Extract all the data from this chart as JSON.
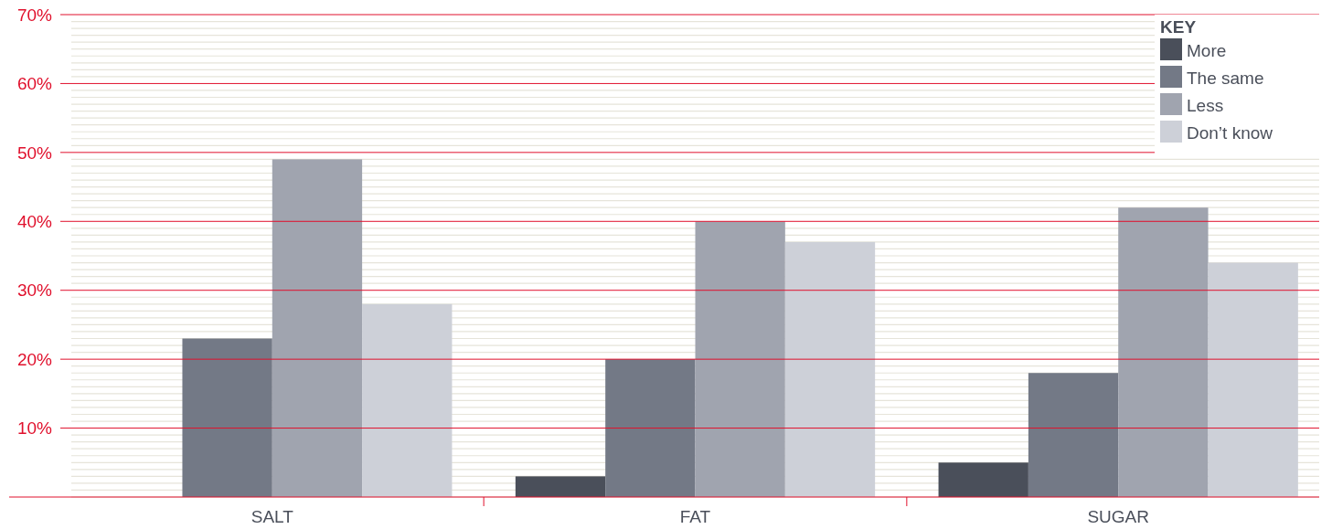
{
  "chart_data": {
    "type": "bar",
    "categories": [
      "SALT",
      "FAT",
      "SUGAR"
    ],
    "series": [
      {
        "name": "More",
        "color": "#4a4f5a",
        "values": [
          0,
          3,
          5
        ]
      },
      {
        "name": "The same",
        "color": "#737986",
        "values": [
          23,
          20,
          18
        ]
      },
      {
        "name": "Less",
        "color": "#a0a4af",
        "values": [
          49,
          40,
          42
        ]
      },
      {
        "name": "Don’t know",
        "color": "#cdd0d8",
        "values": [
          28,
          37,
          34
        ]
      }
    ],
    "ylim": [
      0,
      70
    ],
    "yticks": [
      {
        "value": 0,
        "label": null
      },
      {
        "value": 1,
        "label": null
      },
      {
        "value": 2,
        "label": null
      },
      {
        "value": 3,
        "label": null
      },
      {
        "value": 4,
        "label": null
      },
      {
        "value": 5,
        "label": null
      },
      {
        "value": 6,
        "label": null
      },
      {
        "value": 7,
        "label": null
      },
      {
        "value": 8,
        "label": null
      },
      {
        "value": 9,
        "label": null
      },
      {
        "value": 10,
        "label": "10%"
      },
      {
        "value": 11,
        "label": null
      },
      {
        "value": 12,
        "label": null
      },
      {
        "value": 13,
        "label": null
      },
      {
        "value": 14,
        "label": null
      },
      {
        "value": 15,
        "label": null
      },
      {
        "value": 16,
        "label": null
      },
      {
        "value": 17,
        "label": null
      },
      {
        "value": 18,
        "label": null
      },
      {
        "value": 19,
        "label": null
      },
      {
        "value": 20,
        "label": "20%"
      },
      {
        "value": 21,
        "label": null
      },
      {
        "value": 22,
        "label": null
      },
      {
        "value": 23,
        "label": null
      },
      {
        "value": 24,
        "label": null
      },
      {
        "value": 25,
        "label": null
      },
      {
        "value": 26,
        "label": null
      },
      {
        "value": 27,
        "label": null
      },
      {
        "value": 28,
        "label": null
      },
      {
        "value": 29,
        "label": null
      },
      {
        "value": 30,
        "label": "30%"
      },
      {
        "value": 31,
        "label": null
      },
      {
        "value": 32,
        "label": null
      },
      {
        "value": 33,
        "label": null
      },
      {
        "value": 34,
        "label": null
      },
      {
        "value": 35,
        "label": null
      },
      {
        "value": 36,
        "label": null
      },
      {
        "value": 37,
        "label": null
      },
      {
        "value": 38,
        "label": null
      },
      {
        "value": 39,
        "label": null
      },
      {
        "value": 40,
        "label": "40%"
      },
      {
        "value": 41,
        "label": null
      },
      {
        "value": 42,
        "label": null
      },
      {
        "value": 43,
        "label": null
      },
      {
        "value": 44,
        "label": null
      },
      {
        "value": 45,
        "label": null
      },
      {
        "value": 46,
        "label": null
      },
      {
        "value": 47,
        "label": null
      },
      {
        "value": 48,
        "label": null
      },
      {
        "value": 49,
        "label": null
      },
      {
        "value": 50,
        "label": "50%"
      },
      {
        "value": 51,
        "label": null
      },
      {
        "value": 52,
        "label": null
      },
      {
        "value": 53,
        "label": null
      },
      {
        "value": 54,
        "label": null
      },
      {
        "value": 55,
        "label": null
      },
      {
        "value": 56,
        "label": null
      },
      {
        "value": 57,
        "label": null
      },
      {
        "value": 58,
        "label": null
      },
      {
        "value": 59,
        "label": null
      },
      {
        "value": 60,
        "label": "60%"
      },
      {
        "value": 61,
        "label": null
      },
      {
        "value": 62,
        "label": null
      },
      {
        "value": 63,
        "label": null
      },
      {
        "value": 64,
        "label": null
      },
      {
        "value": 65,
        "label": null
      },
      {
        "value": 66,
        "label": null
      },
      {
        "value": 67,
        "label": null
      },
      {
        "value": 68,
        "label": null
      },
      {
        "value": 69,
        "label": null
      },
      {
        "value": 70,
        "label": "70%"
      }
    ],
    "grid": "y",
    "legend": "top right",
    "legend_title": "KEY"
  }
}
